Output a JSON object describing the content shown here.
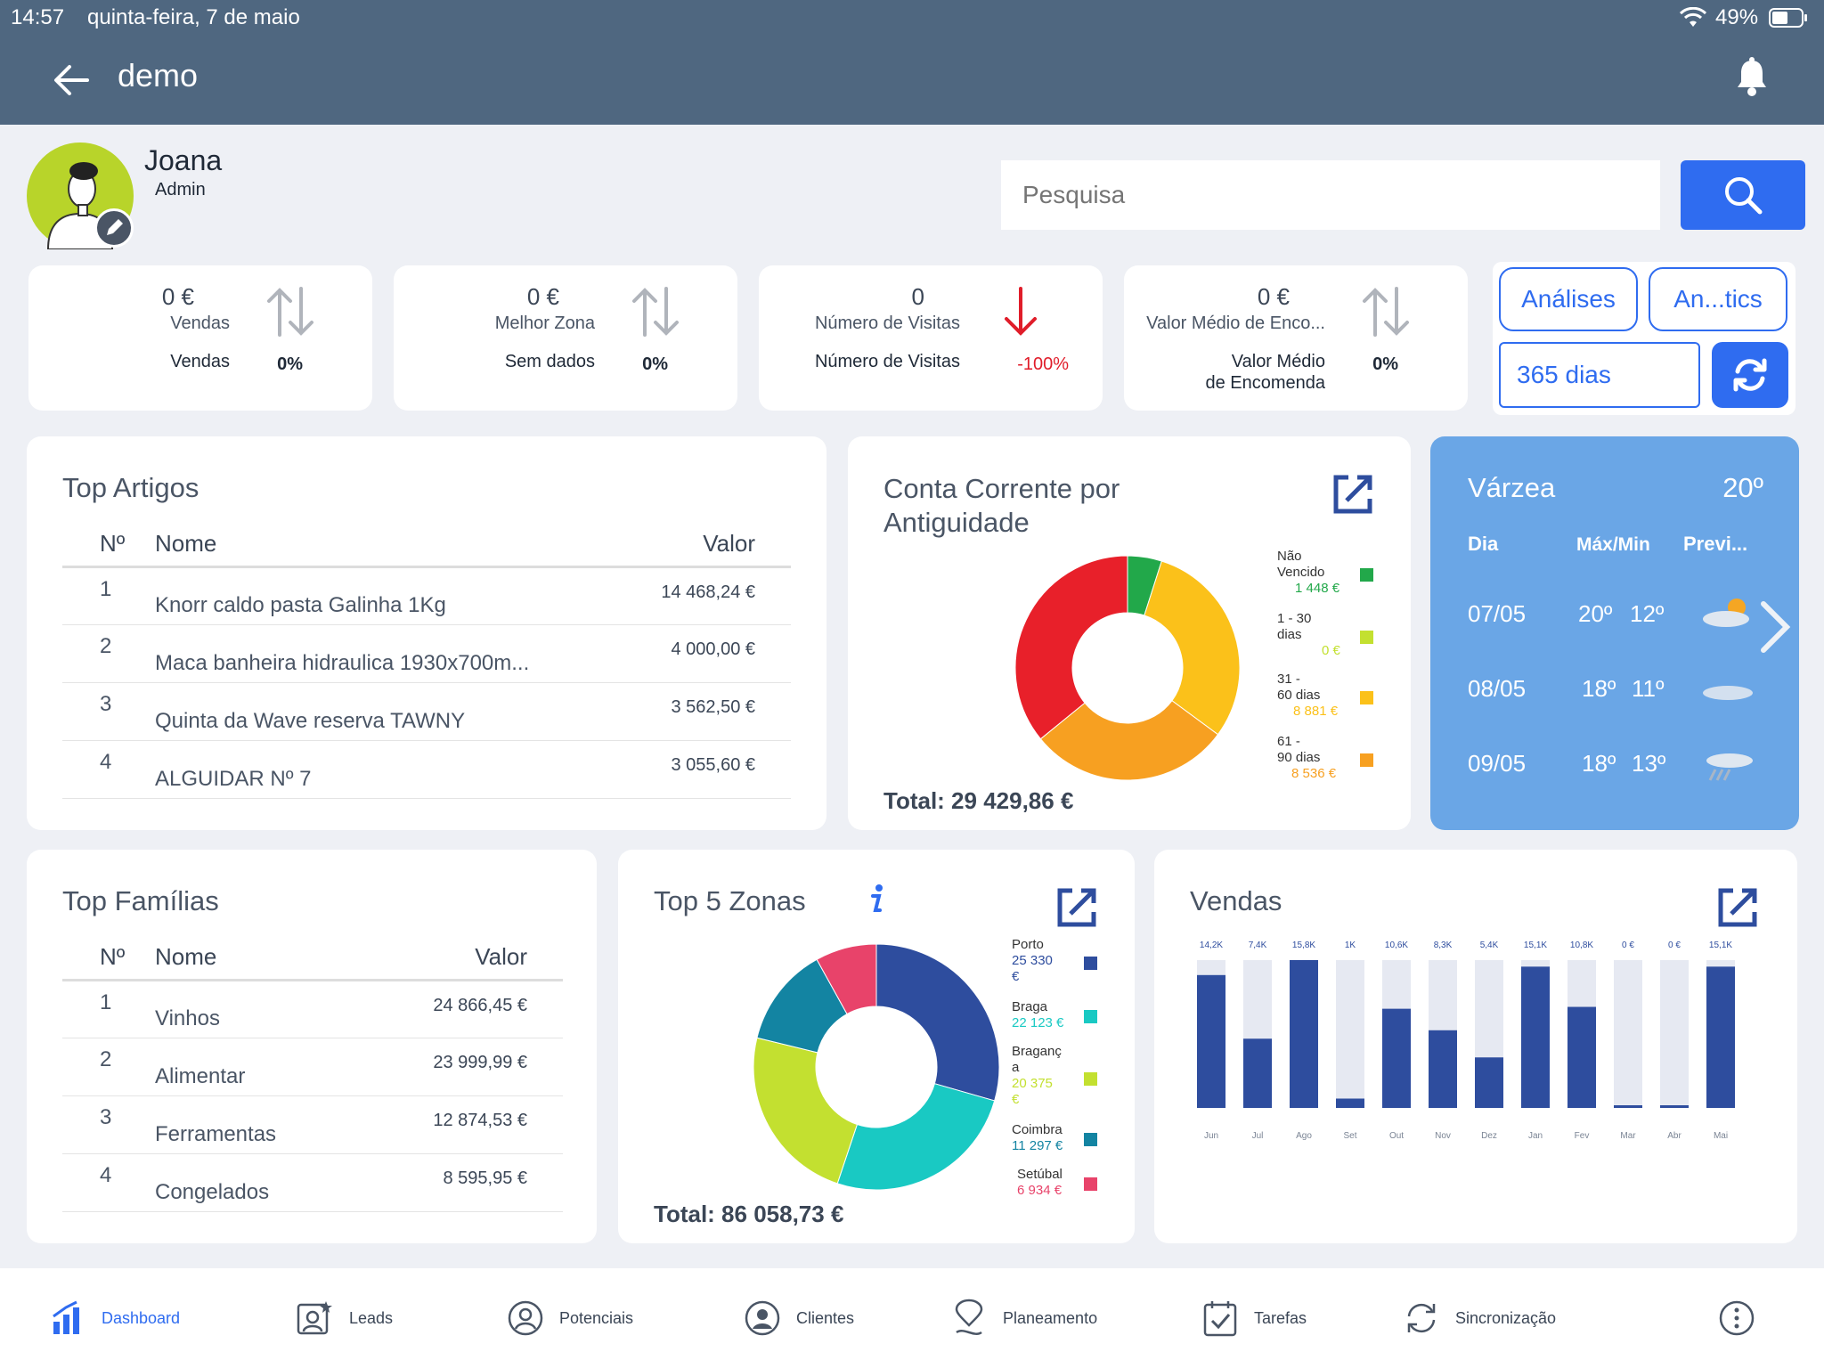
{
  "status": {
    "time": "14:57",
    "date": "quinta-feira, 7 de maio",
    "battery": "49%"
  },
  "header": {
    "title": "demo"
  },
  "user": {
    "name": "Joana",
    "role": "Admin"
  },
  "search": {
    "placeholder": "Pesquisa"
  },
  "kpis": [
    {
      "value": "0 €",
      "label": "Vendas",
      "sub": "Vendas",
      "pct": "0%"
    },
    {
      "value": "0 €",
      "label": "Melhor Zona",
      "sub": "Sem dados",
      "pct": "0%"
    },
    {
      "value": "0",
      "label": "Número de Visitas",
      "sub": "Número de Visitas",
      "pct": "-100%"
    },
    {
      "value": "0 €",
      "label": "Valor Médio de Enco...",
      "sub1": "Valor Médio",
      "sub2": "de Encomenda",
      "pct": "0%"
    }
  ],
  "controls": {
    "analises": "Análises",
    "analytics": "An...tics",
    "period": "365 dias"
  },
  "top_artigos": {
    "title": "Top Artigos",
    "headers": [
      "Nº",
      "Nome",
      "Valor"
    ],
    "rows": [
      [
        "1",
        "Knorr caldo pasta Galinha 1Kg",
        "14 468,24 €"
      ],
      [
        "2",
        "Maca banheira hidraulica 1930x700m...",
        "4 000,00 €"
      ],
      [
        "3",
        "Quinta da Wave reserva TAWNY",
        "3 562,50 €"
      ],
      [
        "4",
        "ALGUIDAR Nº 7",
        "3 055,60 €"
      ]
    ]
  },
  "conta": {
    "title1": "Conta Corrente por",
    "title2": "Antiguidade",
    "total": "Total: 29 429,86 €",
    "legend": [
      {
        "l1": "Não",
        "l2": "Vencido",
        "amt": "1 448 €",
        "color": "#22a84a"
      },
      {
        "l1": "1 - 30",
        "l2": "dias",
        "amt": "0 €",
        "color": "#c3e030"
      },
      {
        "l1": "31 -",
        "l2": "60 dias",
        "amt": "8 881 €",
        "color": "#fbc11a"
      },
      {
        "l1": "61 -",
        "l2": "90 dias",
        "amt": "8 536 €",
        "color": "#f7a021"
      }
    ]
  },
  "conta_chart": {
    "type": "pie",
    "slices": [
      {
        "label": "Não Vencido",
        "value": 1448,
        "color": "#22a84a"
      },
      {
        "label": "1 - 30 dias",
        "value": 0,
        "color": "#c3e030"
      },
      {
        "label": "31 - 60 dias",
        "value": 8881,
        "color": "#fbc11a"
      },
      {
        "label": "61 - 90 dias",
        "value": 8536,
        "color": "#f7a021"
      },
      {
        "label": "",
        "value": 10564.86,
        "color": "#e8202a"
      }
    ]
  },
  "weather": {
    "city": "Várzea",
    "temp": "20º",
    "headers": [
      "Dia",
      "Máx/Min",
      "Previ..."
    ],
    "days": [
      {
        "day": "07/05",
        "max": "20º",
        "min": "12º"
      },
      {
        "day": "08/05",
        "max": "18º",
        "min": "11º"
      },
      {
        "day": "09/05",
        "max": "18º",
        "min": "13º"
      }
    ]
  },
  "top_familias": {
    "title": "Top Famílias",
    "headers": [
      "Nº",
      "Nome",
      "Valor"
    ],
    "rows": [
      [
        "1",
        "Vinhos",
        "24 866,45 €"
      ],
      [
        "2",
        "Alimentar",
        "23 999,99 €"
      ],
      [
        "3",
        "Ferramentas",
        "12 874,53 €"
      ],
      [
        "4",
        "Congelados",
        "8 595,95 €"
      ]
    ]
  },
  "zonas": {
    "title": "Top 5 Zonas",
    "total": "Total: 86 058,73 €",
    "legend": [
      {
        "l1": "Porto",
        "l2": "25 330",
        "l3": "€",
        "color": "#2e4d9e"
      },
      {
        "l1": "Braga",
        "l2": "22 123 €",
        "color": "#19c9c3"
      },
      {
        "l1": "Braganç",
        "l2": "a",
        "l3": "20 375",
        "l4": "€",
        "color": "#c3e030"
      },
      {
        "l1": "Coimbra",
        "l2": "11 297 €",
        "color": "#1384a2"
      },
      {
        "l1": "Setúbal",
        "l2": "6 934 €",
        "color": "#e8436a"
      }
    ]
  },
  "zonas_chart": {
    "type": "pie",
    "slices": [
      {
        "label": "Porto",
        "value": 25330,
        "color": "#2e4d9e"
      },
      {
        "label": "Braga",
        "value": 22123,
        "color": "#19c9c3"
      },
      {
        "label": "Bragança",
        "value": 20375,
        "color": "#c3e030"
      },
      {
        "label": "Coimbra",
        "value": 11297,
        "color": "#1384a2"
      },
      {
        "label": "Setúbal",
        "value": 6934,
        "color": "#e8436a"
      }
    ]
  },
  "vendas": {
    "title": "Vendas"
  },
  "chart_data": {
    "type": "bar",
    "title": "Vendas",
    "categories": [
      "Jun",
      "Jul",
      "Ago",
      "Set",
      "Out",
      "Nov",
      "Dez",
      "Jan",
      "Fev",
      "Mar",
      "Abr",
      "Mai"
    ],
    "labels": [
      "14,2K",
      "7,4K",
      "15,8K",
      "1K",
      "10,6K",
      "8,3K",
      "5,4K",
      "15,1K",
      "10,8K",
      "0 €",
      "0 €",
      "15,1K"
    ],
    "values": [
      14200,
      7400,
      15800,
      1000,
      10600,
      8300,
      5400,
      15100,
      10800,
      0,
      0,
      15100
    ],
    "ylim": [
      0,
      15800
    ]
  },
  "nav": [
    {
      "label": "Dashboard",
      "icon": "dashboard-icon"
    },
    {
      "label": "Leads",
      "icon": "leads-icon"
    },
    {
      "label": "Potenciais",
      "icon": "potenciais-icon"
    },
    {
      "label": "Clientes",
      "icon": "clientes-icon"
    },
    {
      "label": "Planeamento",
      "icon": "planeamento-icon"
    },
    {
      "label": "Tarefas",
      "icon": "tarefas-icon"
    },
    {
      "label": "Sincronização",
      "icon": "sync-icon"
    }
  ],
  "colors": {
    "header": "#4f6780",
    "accent": "#2f6cf0",
    "bar": "#2e4d9e",
    "bar_bg": "#e6e9f2",
    "weather": "#6aa6e6",
    "negative": "#e01d2a"
  }
}
